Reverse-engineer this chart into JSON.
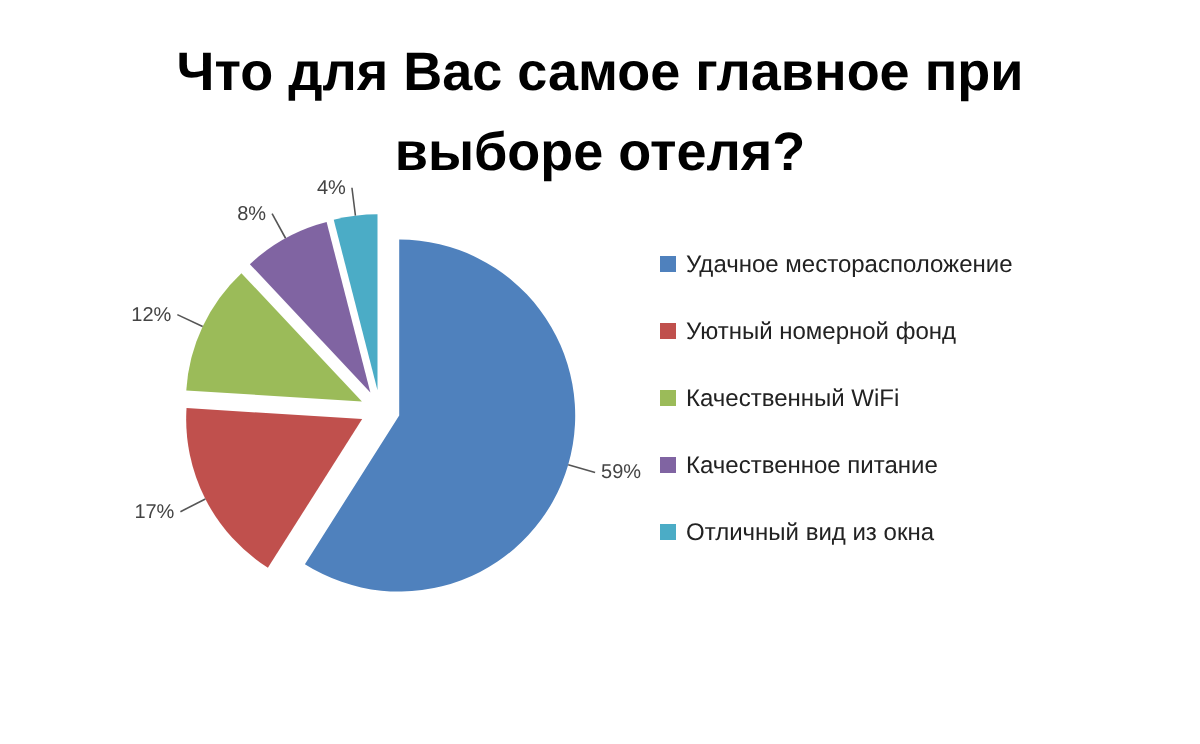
{
  "chart_data": {
    "type": "pie",
    "title": "Что для Вас самое главное при выборе отеля?",
    "categories": [
      "Удачное месторасположение",
      "Уютный номерной фонд",
      "Качественный WiFi",
      "Качественное питание",
      "Отличный вид из окна"
    ],
    "values": [
      59,
      17,
      12,
      8,
      4
    ],
    "value_labels": [
      "59%",
      "17%",
      "12%",
      "8%",
      "4%"
    ],
    "colors": [
      "#4f81bd",
      "#c0504d",
      "#9bbb59",
      "#8064a2",
      "#4bacc6"
    ],
    "legend": "right"
  }
}
